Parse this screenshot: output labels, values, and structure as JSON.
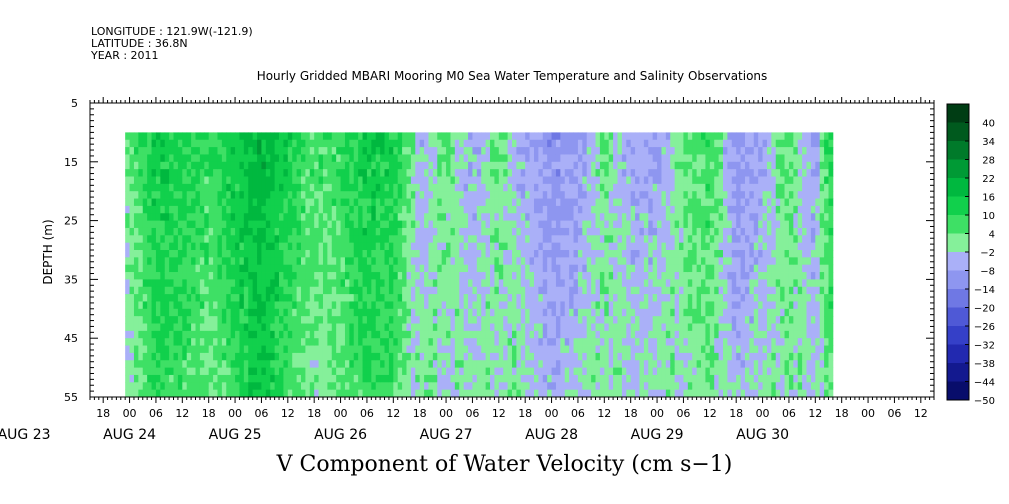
{
  "header": {
    "longitude": "LONGITUDE : 121.9W(-121.9)",
    "latitude": "LATITUDE : 36.8N",
    "year": "YEAR : 2011"
  },
  "chart_data": {
    "type": "heatmap",
    "title": "Hourly Gridded MBARI Mooring M0 Sea Water Temperature and Salinity Observations",
    "xlabel": "V Component of Water Velocity (cm s−1)",
    "ylabel": "DEPTH (m)",
    "ylim": [
      5,
      55
    ],
    "y_reversed": true,
    "y_ticks": [
      5,
      15,
      25,
      35,
      45,
      55
    ],
    "x_range_hours": [
      -9,
      183
    ],
    "x_hour_ticks": [
      "18",
      "00",
      "06",
      "12",
      "18",
      "00",
      "06",
      "12",
      "18",
      "00",
      "06",
      "12",
      "18",
      "00",
      "06",
      "12",
      "18",
      "00",
      "06",
      "12",
      "18",
      "00",
      "06",
      "12",
      "18",
      "00",
      "06",
      "12",
      "18",
      "00",
      "06",
      "12"
    ],
    "date_labels": [
      "AUG 23",
      "AUG 24",
      "AUG 25",
      "AUG 26",
      "AUG 27",
      "AUG 28",
      "AUG 29",
      "AUG 30"
    ],
    "data_depth_range": [
      10,
      55
    ],
    "data_start_hour": 0,
    "colorbar": {
      "levels": [
        "46",
        "40",
        "34",
        "28",
        "22",
        "16",
        "10",
        "4",
        "−2",
        "−8",
        "−14",
        "−20",
        "−26",
        "−32",
        "−38",
        "−44",
        "−50"
      ],
      "colors": [
        "#003d14",
        "#005a1e",
        "#007a2a",
        "#009a35",
        "#00b83f",
        "#11d04c",
        "#3ee065",
        "#85f09a",
        "#aab0f8",
        "#8e96f0",
        "#6f78e4",
        "#4f59d6",
        "#3540c8",
        "#2229b0",
        "#13198f",
        "#080d6b"
      ]
    },
    "v_component_profile": [
      {
        "time": "AUG 23 23:00",
        "v": 0
      },
      {
        "time": "AUG 24 06:00",
        "v": 12
      },
      {
        "time": "AUG 24 12:00",
        "v": 10
      },
      {
        "time": "AUG 24 18:00",
        "v": 6
      },
      {
        "time": "AUG 25 00:00",
        "v": 12
      },
      {
        "time": "AUG 25 06:00",
        "v": 18
      },
      {
        "time": "AUG 25 12:00",
        "v": 10
      },
      {
        "time": "AUG 25 18:00",
        "v": 4
      },
      {
        "time": "AUG 26 00:00",
        "v": 6
      },
      {
        "time": "AUG 26 06:00",
        "v": 12
      },
      {
        "time": "AUG 26 12:00",
        "v": 10
      },
      {
        "time": "AUG 26 18:00",
        "v": -3
      },
      {
        "time": "AUG 27 00:00",
        "v": 2
      },
      {
        "time": "AUG 27 06:00",
        "v": -4
      },
      {
        "time": "AUG 27 12:00",
        "v": 2
      },
      {
        "time": "AUG 27 18:00",
        "v": -4
      },
      {
        "time": "AUG 28 00:00",
        "v": -9
      },
      {
        "time": "AUG 28 06:00",
        "v": -6
      },
      {
        "time": "AUG 28 12:00",
        "v": 2
      },
      {
        "time": "AUG 28 18:00",
        "v": -5
      },
      {
        "time": "AUG 29 00:00",
        "v": -4
      },
      {
        "time": "AUG 29 06:00",
        "v": 2
      },
      {
        "time": "AUG 29 12:00",
        "v": 6
      },
      {
        "time": "AUG 29 18:00",
        "v": -8
      },
      {
        "time": "AUG 30 00:00",
        "v": -4
      },
      {
        "time": "AUG 30 06:00",
        "v": 4
      },
      {
        "time": "AUG 30 12:00",
        "v": -6
      },
      {
        "time": "AUG 30 15:00",
        "v": 8
      }
    ]
  }
}
